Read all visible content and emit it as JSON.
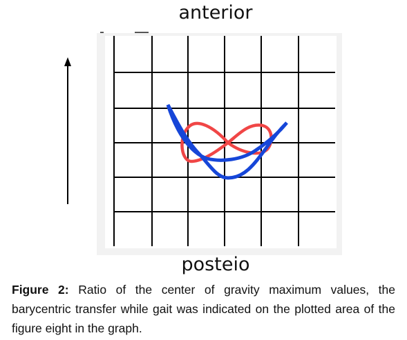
{
  "figure": {
    "top_label": "anterior",
    "bottom_label": "posteio",
    "caption_label": "Figure 2:",
    "caption_text": "Ratio of the center of gravity maximum values, the barycentric transfer while gait was indicated on the plotted area of the figure eight in the graph."
  }
}
